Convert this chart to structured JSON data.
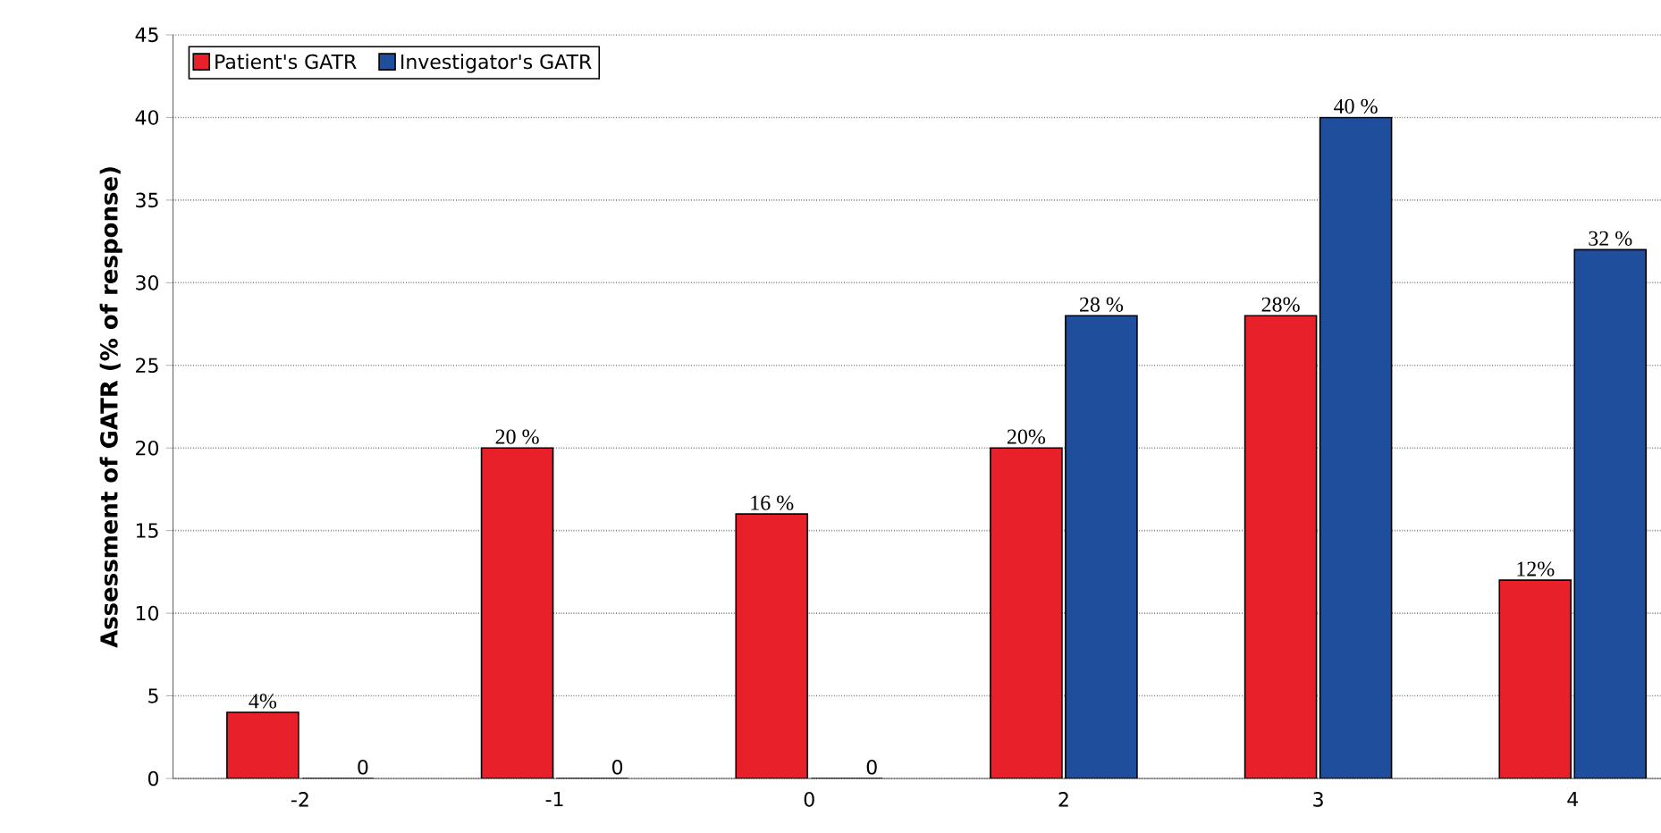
{
  "chart_data": {
    "type": "bar",
    "ylabel": "Assessment of GATR (% of response)",
    "categories": [
      "-2",
      "-1",
      "0",
      "2",
      "3",
      "4"
    ],
    "series": [
      {
        "name": "Patient's GATR",
        "color": "#e8202a",
        "values": [
          4,
          20,
          16,
          20,
          28,
          12
        ],
        "value_labels": [
          "4%",
          "20 %",
          "16 %",
          "20%",
          "28%",
          "12%"
        ]
      },
      {
        "name": "Investigator's GATR",
        "color": "#1f4e9c",
        "values": [
          0,
          0,
          0,
          28,
          40,
          32
        ],
        "value_labels": [
          "0",
          "0",
          "0",
          "28 %",
          "40 %",
          "32 %"
        ]
      }
    ],
    "ylim": [
      0,
      45
    ],
    "yticks": [
      0,
      5,
      10,
      15,
      20,
      25,
      30,
      35,
      40,
      45
    ],
    "grid": "y",
    "legend": "top left"
  }
}
